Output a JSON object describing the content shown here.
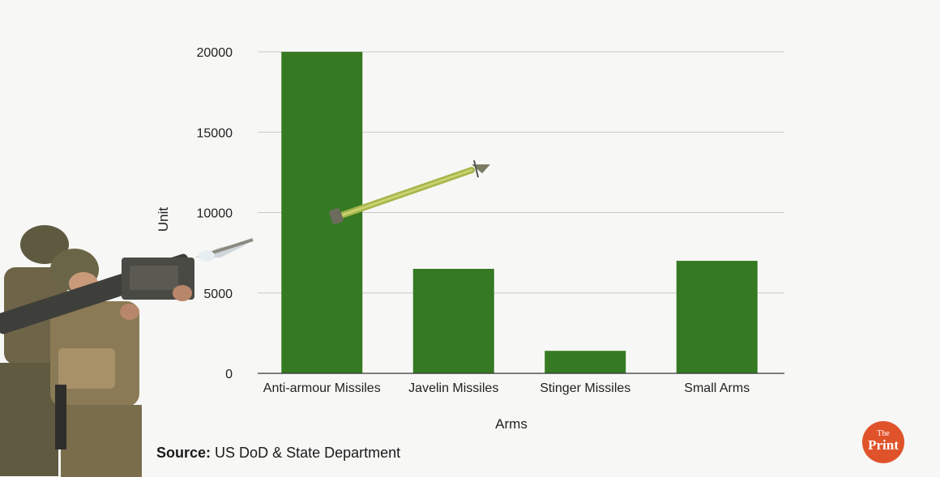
{
  "chart_data": {
    "type": "bar",
    "categories": [
      "Anti-armour Missiles",
      "Javelin Missiles",
      "Stinger Missiles",
      "Small Arms"
    ],
    "values": [
      20000,
      6500,
      1400,
      7000
    ],
    "xlabel": "Arms",
    "ylabel": "Unit",
    "ylim": [
      0,
      20000
    ],
    "yticks": [
      "0",
      "5000",
      "10000",
      "15000",
      "20000"
    ],
    "grid": true,
    "bar_color": "#357a22"
  },
  "source": {
    "label": "Source:",
    "text": "US DoD & State Department"
  },
  "logo": {
    "line1": "The",
    "line2": "Print",
    "color": "#e0532a"
  },
  "decorations": {
    "soldier_image": "soldiers-with-stinger-launcher",
    "missile_image": "javelin-missile"
  }
}
